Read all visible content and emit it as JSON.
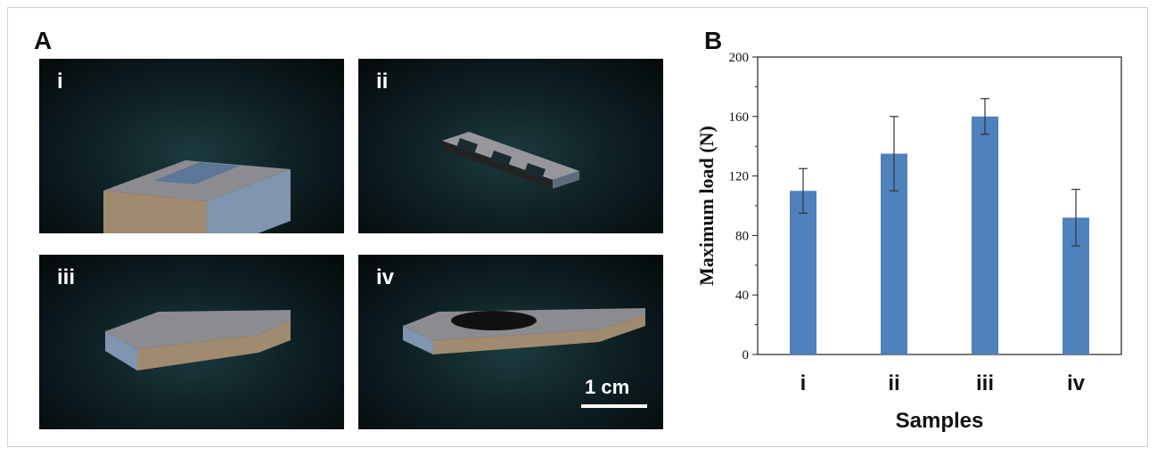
{
  "panel_a": {
    "letter": "A",
    "tiles": [
      {
        "label": "i"
      },
      {
        "label": "ii"
      },
      {
        "label": "iii"
      },
      {
        "label": "iv"
      }
    ],
    "scale_bar": "1 cm"
  },
  "panel_b": {
    "letter": "B"
  },
  "colors": {
    "bar": "#4f81bd",
    "tile_bg": "#0f2226",
    "block_top": "#8c8c90",
    "block_front": "#a08a70",
    "block_side": "#7f95b0"
  },
  "chart_data": {
    "type": "bar",
    "categories": [
      "i",
      "ii",
      "iii",
      "iv"
    ],
    "values": [
      110,
      135,
      160,
      92
    ],
    "errors": [
      15,
      25,
      12,
      19
    ],
    "xlabel": "Samples",
    "ylabel": "Maximum load (N)",
    "ylim": [
      0,
      200
    ],
    "yticks": [
      0,
      40,
      80,
      120,
      160,
      200
    ],
    "grid": false
  }
}
